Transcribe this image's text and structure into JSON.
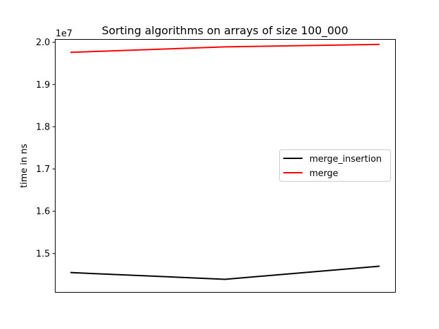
{
  "chart_data": {
    "type": "line",
    "title": "Sorting algorithms on arrays of size 100_000",
    "xlabel": "",
    "ylabel": "time in ns",
    "y_offset_label": "1e7",
    "y_tick_labels": [
      "1.5",
      "1.6",
      "1.7",
      "1.8",
      "1.9",
      "2.0"
    ],
    "y_ticks": [
      1.5,
      1.6,
      1.7,
      1.8,
      1.9,
      2.0
    ],
    "ylim": [
      1.409,
      2.0075
    ],
    "xlim": [
      -0.1,
      2.1
    ],
    "x_ticks_shown": false,
    "grid": false,
    "legend_position": "center-right",
    "x": [
      0,
      1,
      2
    ],
    "series": [
      {
        "name": "merge_insertion",
        "color": "#000000",
        "values": [
          1.455,
          1.439,
          1.47
        ]
      },
      {
        "name": "merge",
        "color": "#ff0000",
        "values": [
          1.976,
          1.989,
          1.995
        ]
      }
    ]
  }
}
